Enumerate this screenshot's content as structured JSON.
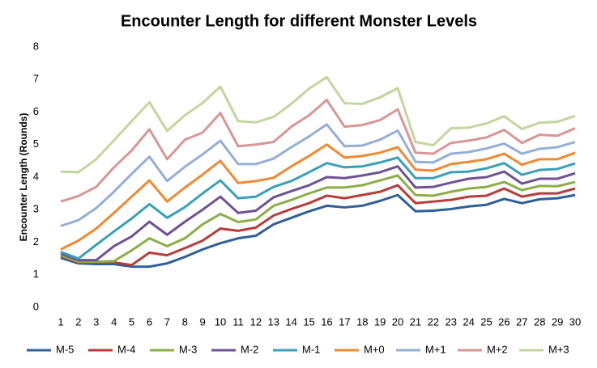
{
  "chart_data": {
    "type": "line",
    "title": "Encounter Length for different Monster Levels",
    "y_label": "Encounter Length (Rounds)",
    "categories": [
      "1",
      "2",
      "3",
      "4",
      "5",
      "6",
      "7",
      "8",
      "9",
      "10",
      "11",
      "12",
      "13",
      "14",
      "15",
      "16",
      "17",
      "18",
      "19",
      "20",
      "21",
      "22",
      "23",
      "24",
      "25",
      "26",
      "27",
      "28",
      "29",
      "30"
    ],
    "ylim": [
      0,
      8
    ],
    "yticks": [
      0,
      1,
      2,
      3,
      4,
      5,
      6,
      7,
      8
    ],
    "grid": false,
    "legend": "bottom",
    "series": [
      {
        "name": "M-5",
        "color": "#2f5f98",
        "values": [
          1.52,
          1.35,
          1.33,
          1.33,
          1.25,
          1.25,
          1.35,
          1.55,
          1.78,
          1.97,
          2.12,
          2.2,
          2.55,
          2.75,
          2.95,
          3.12,
          3.07,
          3.12,
          3.27,
          3.45,
          2.95,
          2.97,
          3.02,
          3.1,
          3.15,
          3.33,
          3.2,
          3.32,
          3.35,
          3.45
        ]
      },
      {
        "name": "M-4",
        "color": "#b83c39",
        "values": [
          1.58,
          1.38,
          1.38,
          1.38,
          1.3,
          1.68,
          1.6,
          1.82,
          2.05,
          2.42,
          2.35,
          2.45,
          2.82,
          3.02,
          3.2,
          3.43,
          3.35,
          3.45,
          3.55,
          3.75,
          3.2,
          3.25,
          3.3,
          3.4,
          3.43,
          3.65,
          3.4,
          3.5,
          3.5,
          3.65
        ]
      },
      {
        "name": "M-3",
        "color": "#8cae48",
        "values": [
          1.6,
          1.4,
          1.4,
          1.42,
          1.75,
          2.12,
          1.88,
          2.12,
          2.55,
          2.87,
          2.62,
          2.7,
          3.12,
          3.3,
          3.5,
          3.68,
          3.68,
          3.75,
          3.9,
          4.05,
          3.45,
          3.43,
          3.55,
          3.65,
          3.7,
          3.85,
          3.6,
          3.73,
          3.72,
          3.85
        ]
      },
      {
        "name": "M-2",
        "color": "#6e5294",
        "values": [
          1.65,
          1.45,
          1.45,
          1.88,
          2.18,
          2.63,
          2.23,
          2.63,
          3.0,
          3.4,
          2.9,
          2.97,
          3.38,
          3.57,
          3.75,
          4.0,
          3.97,
          4.05,
          4.15,
          4.33,
          3.68,
          3.7,
          3.83,
          3.95,
          4.0,
          4.17,
          3.8,
          3.95,
          3.95,
          4.12
        ]
      },
      {
        "name": "M-1",
        "color": "#3aa0b9",
        "values": [
          1.7,
          1.5,
          1.92,
          2.33,
          2.73,
          3.17,
          2.75,
          3.08,
          3.5,
          3.9,
          3.35,
          3.4,
          3.7,
          3.88,
          4.15,
          4.43,
          4.3,
          4.33,
          4.45,
          4.6,
          3.97,
          3.97,
          4.15,
          4.17,
          4.27,
          4.43,
          4.07,
          4.22,
          4.25,
          4.42
        ]
      },
      {
        "name": "M+0",
        "color": "#f08a32",
        "values": [
          1.78,
          2.05,
          2.42,
          2.9,
          3.4,
          3.9,
          3.25,
          3.68,
          4.08,
          4.5,
          3.82,
          3.88,
          3.98,
          4.33,
          4.65,
          5.0,
          4.6,
          4.65,
          4.75,
          4.92,
          4.23,
          4.2,
          4.4,
          4.47,
          4.55,
          4.72,
          4.38,
          4.55,
          4.55,
          4.75
        ]
      },
      {
        "name": "M+1",
        "color": "#93afd6",
        "values": [
          2.5,
          2.68,
          3.05,
          3.55,
          4.1,
          4.63,
          3.88,
          4.32,
          4.7,
          5.12,
          4.4,
          4.4,
          4.57,
          4.92,
          5.25,
          5.62,
          4.95,
          4.97,
          5.15,
          5.43,
          4.47,
          4.45,
          4.72,
          4.77,
          4.88,
          5.03,
          4.72,
          4.87,
          4.92,
          5.08
        ]
      },
      {
        "name": "M+2",
        "color": "#d99694",
        "values": [
          3.25,
          3.42,
          3.7,
          4.3,
          4.82,
          5.47,
          4.55,
          5.15,
          5.37,
          5.97,
          4.95,
          5.0,
          5.08,
          5.55,
          5.9,
          6.37,
          5.55,
          5.6,
          5.75,
          6.08,
          4.75,
          4.72,
          5.05,
          5.12,
          5.22,
          5.45,
          5.05,
          5.3,
          5.27,
          5.5
        ]
      },
      {
        "name": "M+3",
        "color": "#c3d69b",
        "values": [
          4.17,
          4.15,
          4.55,
          5.13,
          5.72,
          6.3,
          5.42,
          5.9,
          6.28,
          6.78,
          5.72,
          5.68,
          5.85,
          6.25,
          6.72,
          7.07,
          6.27,
          6.25,
          6.45,
          6.73,
          5.08,
          4.98,
          5.5,
          5.52,
          5.65,
          5.87,
          5.48,
          5.67,
          5.7,
          5.88
        ]
      }
    ]
  }
}
